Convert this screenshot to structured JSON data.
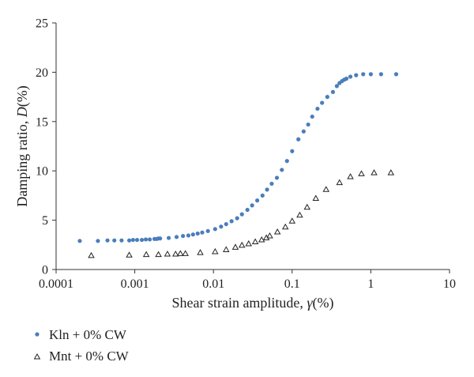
{
  "chart_data": {
    "type": "scatter",
    "title": "",
    "xlabel_main": "Shear strain amplitude,",
    "xlabel_symbol": "γ",
    "xlabel_unit": "(%)",
    "ylabel_main": "Damping ratio,",
    "ylabel_symbol": "D",
    "ylabel_unit": "(%)",
    "x_scale": "log",
    "xlim": [
      0.0001,
      10
    ],
    "ylim": [
      0,
      25
    ],
    "x_ticks": [
      0.0001,
      0.001,
      0.01,
      0.1,
      1,
      10
    ],
    "x_tick_labels": [
      "0.0001",
      "0.001",
      "0.01",
      "0.1",
      "1",
      "10"
    ],
    "y_ticks": [
      0,
      5,
      10,
      15,
      20,
      25
    ],
    "y_tick_labels": [
      "0",
      "5",
      "10",
      "15",
      "20",
      "25"
    ],
    "grid": false,
    "legend_position": "bottom-left, below plot",
    "series": [
      {
        "name": "Kln + 0% CW",
        "marker": "filled-circle",
        "color": "#4a7ebb",
        "points": [
          [
            0.0002,
            2.9
          ],
          [
            0.00034,
            2.9
          ],
          [
            0.00045,
            2.95
          ],
          [
            0.00055,
            2.95
          ],
          [
            0.00068,
            2.95
          ],
          [
            0.00085,
            2.95
          ],
          [
            0.00095,
            3.0
          ],
          [
            0.00107,
            3.0
          ],
          [
            0.00123,
            3.0
          ],
          [
            0.00138,
            3.05
          ],
          [
            0.00155,
            3.05
          ],
          [
            0.00178,
            3.1
          ],
          [
            0.0019,
            3.1
          ],
          [
            0.002,
            3.15
          ],
          [
            0.0021,
            3.15
          ],
          [
            0.0027,
            3.2
          ],
          [
            0.0034,
            3.3
          ],
          [
            0.0041,
            3.4
          ],
          [
            0.0048,
            3.45
          ],
          [
            0.0055,
            3.55
          ],
          [
            0.0063,
            3.65
          ],
          [
            0.0072,
            3.75
          ],
          [
            0.0085,
            3.9
          ],
          [
            0.0105,
            4.1
          ],
          [
            0.0125,
            4.35
          ],
          [
            0.0145,
            4.6
          ],
          [
            0.017,
            4.9
          ],
          [
            0.02,
            5.2
          ],
          [
            0.023,
            5.6
          ],
          [
            0.027,
            6.05
          ],
          [
            0.031,
            6.5
          ],
          [
            0.036,
            7.0
          ],
          [
            0.042,
            7.5
          ],
          [
            0.048,
            8.1
          ],
          [
            0.055,
            8.7
          ],
          [
            0.064,
            9.3
          ],
          [
            0.074,
            10.1
          ],
          [
            0.086,
            11.0
          ],
          [
            0.1,
            12.0
          ],
          [
            0.12,
            13.2
          ],
          [
            0.14,
            14.0
          ],
          [
            0.16,
            14.7
          ],
          [
            0.18,
            15.5
          ],
          [
            0.21,
            16.3
          ],
          [
            0.24,
            16.9
          ],
          [
            0.28,
            17.5
          ],
          [
            0.33,
            18.0
          ],
          [
            0.37,
            18.6
          ],
          [
            0.4,
            18.9
          ],
          [
            0.43,
            19.1
          ],
          [
            0.46,
            19.25
          ],
          [
            0.49,
            19.35
          ],
          [
            0.55,
            19.55
          ],
          [
            0.65,
            19.7
          ],
          [
            0.8,
            19.8
          ],
          [
            1.0,
            19.8
          ],
          [
            1.35,
            19.8
          ],
          [
            2.1,
            19.8
          ]
        ]
      },
      {
        "name": "Mnt + 0% CW",
        "marker": "open-triangle",
        "color": "#222222",
        "points": [
          [
            0.00028,
            1.4
          ],
          [
            0.00085,
            1.45
          ],
          [
            0.0014,
            1.5
          ],
          [
            0.002,
            1.5
          ],
          [
            0.0026,
            1.55
          ],
          [
            0.0033,
            1.55
          ],
          [
            0.0038,
            1.6
          ],
          [
            0.0044,
            1.6
          ],
          [
            0.0068,
            1.7
          ],
          [
            0.0105,
            1.8
          ],
          [
            0.0145,
            2.0
          ],
          [
            0.019,
            2.25
          ],
          [
            0.023,
            2.45
          ],
          [
            0.028,
            2.6
          ],
          [
            0.034,
            2.8
          ],
          [
            0.041,
            3.0
          ],
          [
            0.047,
            3.2
          ],
          [
            0.052,
            3.4
          ],
          [
            0.065,
            3.8
          ],
          [
            0.082,
            4.3
          ],
          [
            0.1,
            4.9
          ],
          [
            0.125,
            5.5
          ],
          [
            0.155,
            6.3
          ],
          [
            0.2,
            7.2
          ],
          [
            0.27,
            8.1
          ],
          [
            0.4,
            8.8
          ],
          [
            0.55,
            9.4
          ],
          [
            0.76,
            9.7
          ],
          [
            1.1,
            9.8
          ],
          [
            1.8,
            9.8
          ]
        ]
      }
    ]
  }
}
